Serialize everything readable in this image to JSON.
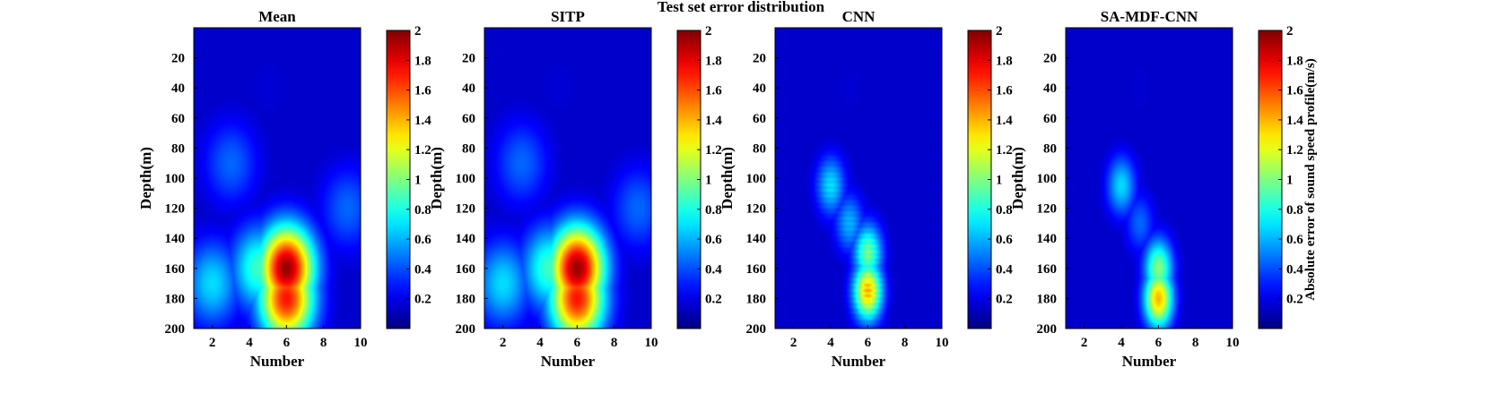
{
  "figure": {
    "title": "Test set error distribution"
  },
  "chart_data": [
    {
      "type": "heatmap",
      "title": "Mean",
      "xlabel": "Number",
      "ylabel": "Depth(m)",
      "xlim": [
        1,
        10
      ],
      "ylim": [
        0,
        200
      ],
      "y_reversed": true,
      "xticks": [
        2,
        4,
        6,
        8,
        10
      ],
      "yticks": [
        20,
        40,
        60,
        80,
        100,
        120,
        140,
        160,
        180,
        200
      ],
      "colorbar": {
        "range": [
          0,
          2
        ],
        "ticks": [
          0.2,
          0.4,
          0.6,
          0.8,
          1,
          1.2,
          1.4,
          1.6,
          1.8,
          2
        ],
        "colormap": "jet",
        "label": ""
      },
      "values_described": [
        {
          "x": 6,
          "depth": 160,
          "error": 1.95
        },
        {
          "x": 6,
          "depth": 180,
          "error": 1.7
        },
        {
          "x": 4.5,
          "depth": 160,
          "error": 0.8
        },
        {
          "x": 2,
          "depth": 170,
          "error": 0.6
        },
        {
          "x": 3,
          "depth": 90,
          "error": 0.35
        },
        {
          "x": 9.3,
          "depth": 120,
          "error": 0.35
        },
        {
          "x": 5,
          "depth": 40,
          "error": 0.05
        }
      ]
    },
    {
      "type": "heatmap",
      "title": "SITP",
      "xlabel": "Number",
      "ylabel": "Depth(m)",
      "xlim": [
        1,
        10
      ],
      "ylim": [
        0,
        200
      ],
      "y_reversed": true,
      "xticks": [
        2,
        4,
        6,
        8,
        10
      ],
      "yticks": [
        20,
        40,
        60,
        80,
        100,
        120,
        140,
        160,
        180,
        200
      ],
      "colorbar": {
        "range": [
          0,
          2
        ],
        "ticks": [
          0.2,
          0.4,
          0.6,
          0.8,
          1,
          1.2,
          1.4,
          1.6,
          1.8,
          2
        ],
        "colormap": "jet",
        "label": ""
      },
      "values_described": [
        {
          "x": 6,
          "depth": 160,
          "error": 1.95
        },
        {
          "x": 6,
          "depth": 180,
          "error": 1.7
        },
        {
          "x": 4.5,
          "depth": 160,
          "error": 0.8
        },
        {
          "x": 2,
          "depth": 170,
          "error": 0.6
        },
        {
          "x": 3,
          "depth": 90,
          "error": 0.35
        },
        {
          "x": 9.3,
          "depth": 120,
          "error": 0.35
        },
        {
          "x": 5,
          "depth": 40,
          "error": 0.05
        }
      ]
    },
    {
      "type": "heatmap",
      "title": "CNN",
      "xlabel": "Number",
      "ylabel": "Depth(m)",
      "xlim": [
        1,
        10
      ],
      "ylim": [
        0,
        200
      ],
      "y_reversed": true,
      "xticks": [
        2,
        4,
        6,
        8,
        10
      ],
      "yticks": [
        20,
        40,
        60,
        80,
        100,
        120,
        140,
        160,
        180,
        200
      ],
      "colorbar": {
        "range": [
          0,
          2
        ],
        "ticks": [
          0.2,
          0.4,
          0.6,
          0.8,
          1,
          1.2,
          1.4,
          1.6,
          1.8,
          2
        ],
        "colormap": "jet",
        "label": ""
      },
      "values_described": [
        {
          "x": 6,
          "depth": 175,
          "error": 1.35
        },
        {
          "x": 6,
          "depth": 150,
          "error": 0.9
        },
        {
          "x": 4,
          "depth": 105,
          "error": 0.6
        },
        {
          "x": 5,
          "depth": 130,
          "error": 0.5
        },
        {
          "x": 5,
          "depth": 40,
          "error": 0.05
        }
      ]
    },
    {
      "type": "heatmap",
      "title": "SA-MDF-CNN",
      "xlabel": "Number",
      "ylabel": "Depth(m)",
      "xlim": [
        1,
        10
      ],
      "ylim": [
        0,
        200
      ],
      "y_reversed": true,
      "xticks": [
        2,
        4,
        6,
        8,
        10
      ],
      "yticks": [
        20,
        40,
        60,
        80,
        100,
        120,
        140,
        160,
        180,
        200
      ],
      "colorbar": {
        "range": [
          0,
          2
        ],
        "ticks": [
          0.2,
          0.4,
          0.6,
          0.8,
          1,
          1.2,
          1.4,
          1.6,
          1.8,
          2
        ],
        "colormap": "jet",
        "label": "Absolute error of sound speed profile(m/s)"
      },
      "values_described": [
        {
          "x": 6,
          "depth": 180,
          "error": 1.35
        },
        {
          "x": 6,
          "depth": 160,
          "error": 0.95
        },
        {
          "x": 4,
          "depth": 105,
          "error": 0.6
        },
        {
          "x": 5,
          "depth": 130,
          "error": 0.35
        },
        {
          "x": 5,
          "depth": 40,
          "error": 0.05
        }
      ]
    }
  ]
}
